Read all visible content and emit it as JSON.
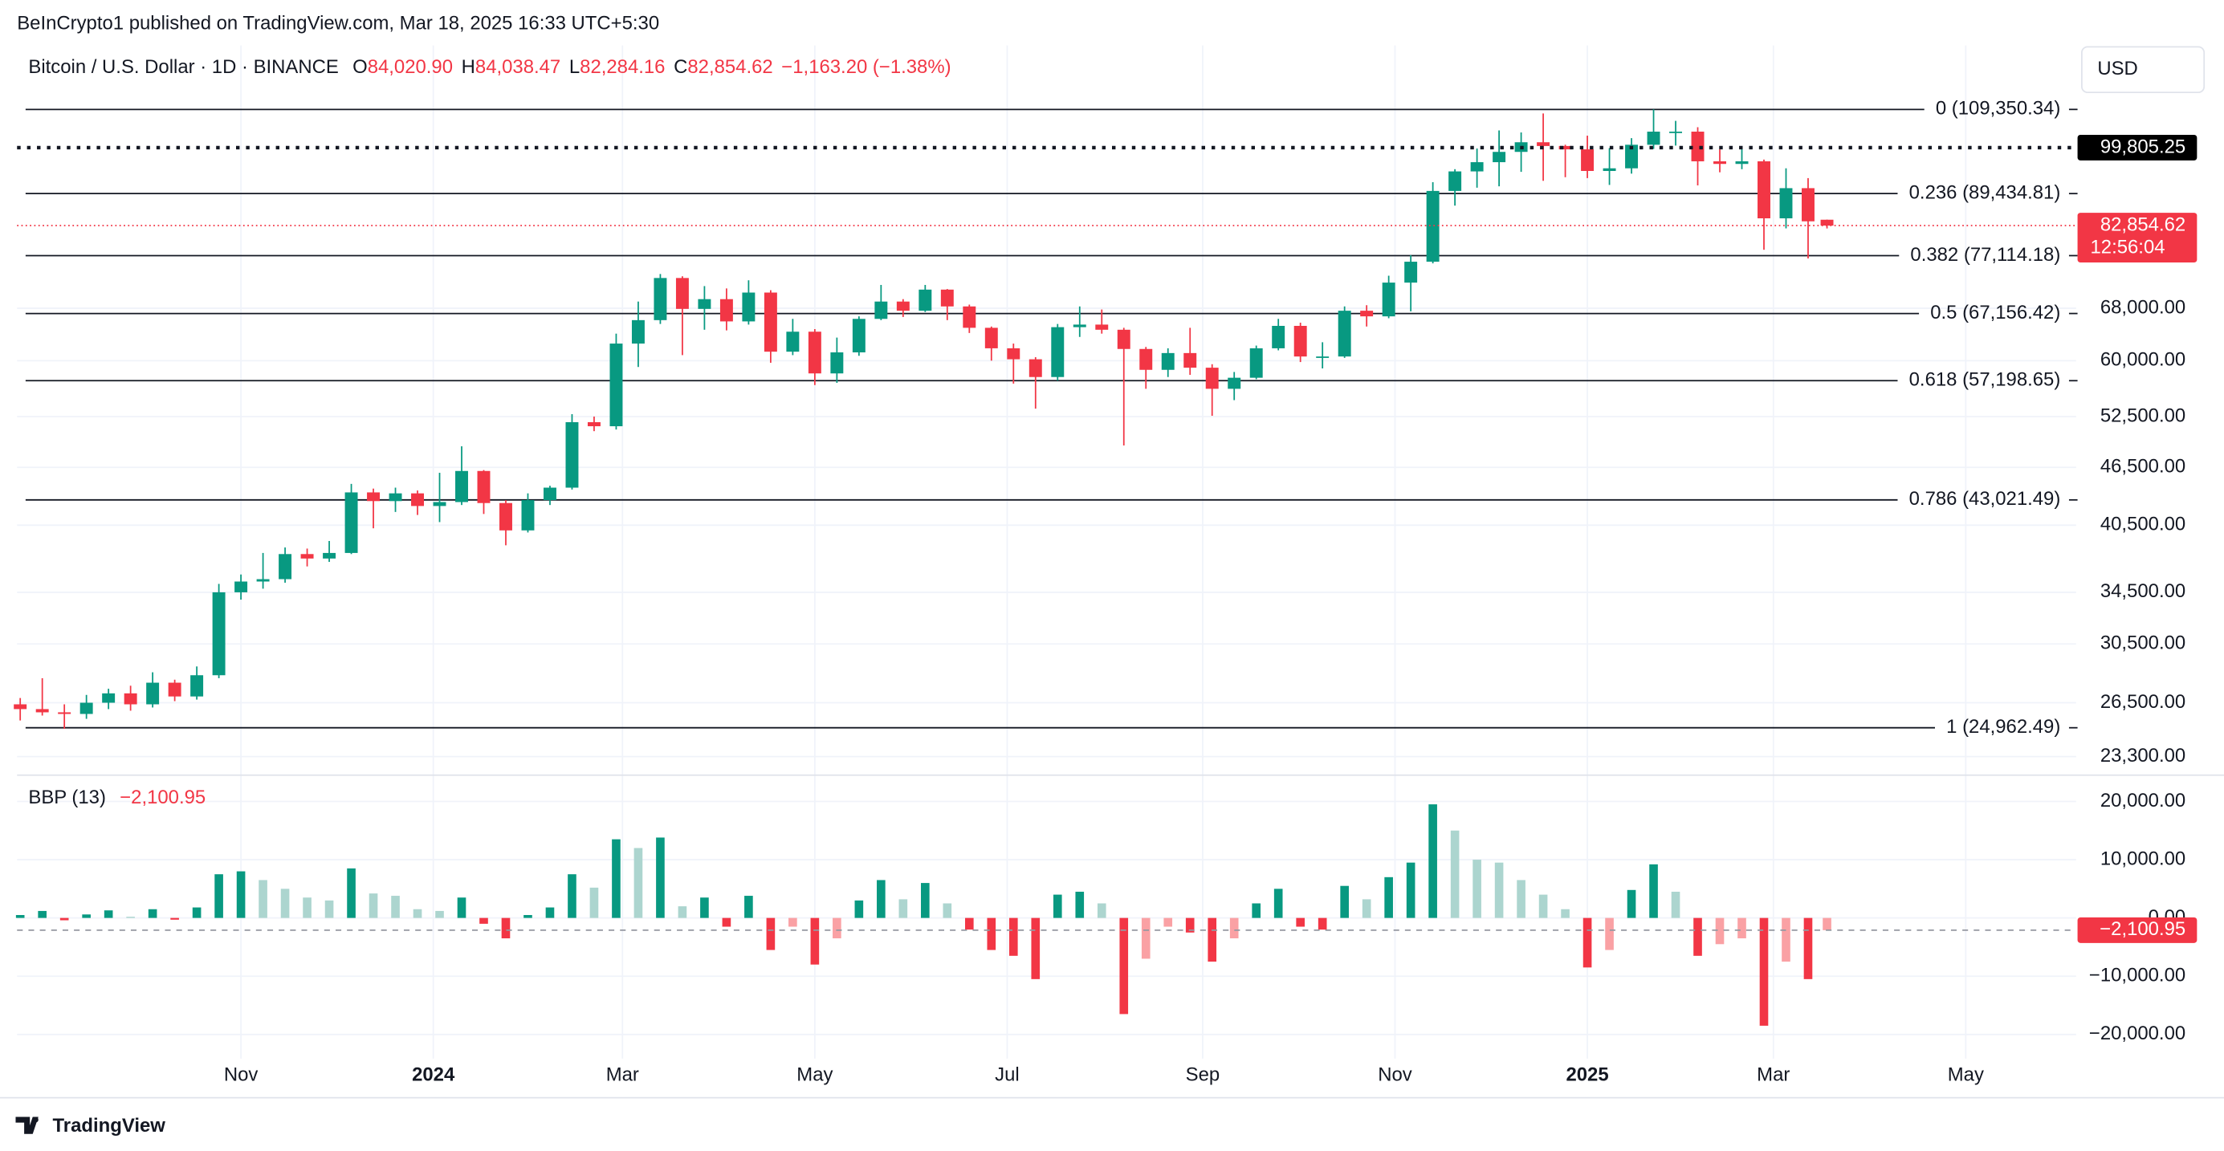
{
  "header": {
    "published": "BeInCrypto1 published on TradingView.com, Mar 18, 2025 16:33 UTC+5:30",
    "currency_button": "USD",
    "brand": "TradingView"
  },
  "legend": {
    "symbol": "Bitcoin / U.S. Dollar · 1D · BINANCE",
    "fields": [
      {
        "key": "O",
        "value": "84,020.90"
      },
      {
        "key": "H",
        "value": "84,038.47"
      },
      {
        "key": "L",
        "value": "82,284.16"
      },
      {
        "key": "C",
        "value": "82,854.62"
      }
    ],
    "change": "−1,163.20 (−1.38%)"
  },
  "chart_data": {
    "type": "candlestick",
    "log_scale": true,
    "grid": true,
    "up_color": "#089981",
    "down_color": "#f23645",
    "x": [
      "2023-08-23",
      "2023-08-30",
      "2023-09-06",
      "2023-09-13",
      "2023-09-20",
      "2023-09-27",
      "2023-10-04",
      "2023-10-11",
      "2023-10-18",
      "2023-10-25",
      "2023-11-01",
      "2023-11-08",
      "2023-11-15",
      "2023-11-22",
      "2023-11-29",
      "2023-12-06",
      "2023-12-13",
      "2023-12-20",
      "2023-12-27",
      "2024-01-03",
      "2024-01-10",
      "2024-01-17",
      "2024-01-24",
      "2024-01-31",
      "2024-02-07",
      "2024-02-14",
      "2024-02-21",
      "2024-02-28",
      "2024-03-06",
      "2024-03-13",
      "2024-03-20",
      "2024-03-27",
      "2024-04-03",
      "2024-04-10",
      "2024-04-17",
      "2024-04-24",
      "2024-05-01",
      "2024-05-08",
      "2024-05-15",
      "2024-05-22",
      "2024-05-29",
      "2024-06-05",
      "2024-06-12",
      "2024-06-19",
      "2024-06-26",
      "2024-07-03",
      "2024-07-10",
      "2024-07-17",
      "2024-07-24",
      "2024-07-31",
      "2024-08-07",
      "2024-08-14",
      "2024-08-21",
      "2024-08-28",
      "2024-09-04",
      "2024-09-11",
      "2024-09-18",
      "2024-09-25",
      "2024-10-02",
      "2024-10-09",
      "2024-10-16",
      "2024-10-23",
      "2024-10-30",
      "2024-11-06",
      "2024-11-13",
      "2024-11-20",
      "2024-11-27",
      "2024-12-04",
      "2024-12-11",
      "2024-12-18",
      "2024-12-25",
      "2025-01-01",
      "2025-01-08",
      "2025-01-15",
      "2025-01-22",
      "2025-01-29",
      "2025-02-05",
      "2025-02-12",
      "2025-02-19",
      "2025-02-26",
      "2025-03-05",
      "2025-03-12",
      "2025-03-18"
    ],
    "open": [
      26400,
      26100,
      25900,
      25800,
      26500,
      27100,
      26400,
      27800,
      26900,
      28300,
      34500,
      35400,
      35600,
      37800,
      37400,
      37900,
      43800,
      42900,
      43700,
      42400,
      42800,
      46100,
      42700,
      40000,
      43000,
      44300,
      51800,
      51300,
      62500,
      66100,
      73100,
      67900,
      69500,
      65900,
      70600,
      61300,
      64300,
      58200,
      61200,
      66300,
      69100,
      67600,
      71100,
      68300,
      64900,
      61800,
      60200,
      57700,
      65000,
      65400,
      64600,
      61700,
      58700,
      61100,
      59000,
      56100,
      57600,
      61800,
      65200,
      60600,
      60600,
      67600,
      66700,
      72300,
      76000,
      90000,
      94300,
      96400,
      98800,
      101100,
      100200,
      99400,
      94400,
      95000,
      100500,
      103700,
      103700,
      96600,
      96000,
      96600,
      84300,
      90600,
      84020.9
    ],
    "high": [
      26800,
      28100,
      26400,
      27000,
      27400,
      27600,
      28500,
      28000,
      28900,
      35200,
      36000,
      37900,
      38400,
      38300,
      39000,
      44700,
      44200,
      44300,
      44000,
      45900,
      48900,
      46200,
      43000,
      43700,
      44500,
      52800,
      52500,
      64000,
      69100,
      73800,
      73400,
      71700,
      71300,
      72700,
      71000,
      66300,
      64700,
      63400,
      66700,
      71900,
      69500,
      71900,
      71200,
      68600,
      65100,
      62500,
      60500,
      65500,
      68300,
      67800,
      64900,
      62000,
      61800,
      64900,
      59500,
      58400,
      62200,
      66300,
      65700,
      62700,
      68300,
      68500,
      73500,
      77200,
      91900,
      94800,
      99600,
      104000,
      103500,
      108300,
      100500,
      102700,
      99700,
      102100,
      109350,
      106400,
      104800,
      99400,
      99500,
      97000,
      95000,
      92800,
      84038.47
    ],
    "low": [
      25400,
      25700,
      24900,
      25500,
      26100,
      26000,
      26200,
      26600,
      26700,
      28100,
      33900,
      34800,
      35300,
      36700,
      37100,
      37800,
      40200,
      41800,
      41500,
      40800,
      42500,
      41600,
      38600,
      39800,
      42500,
      44100,
      50700,
      50900,
      59100,
      65500,
      60800,
      64600,
      64500,
      65400,
      59700,
      60800,
      56600,
      56900,
      60700,
      66100,
      66600,
      67400,
      66100,
      64100,
      60000,
      56800,
      53500,
      57200,
      63500,
      64000,
      49000,
      56100,
      57700,
      58000,
      52600,
      54600,
      57400,
      61500,
      59800,
      58900,
      60400,
      65100,
      66400,
      67500,
      75700,
      86900,
      90700,
      91000,
      94200,
      92200,
      93000,
      92800,
      91300,
      93800,
      99500,
      100300,
      91200,
      94100,
      94800,
      78200,
      82300,
      76600,
      82284.16
    ],
    "close": [
      26100,
      25900,
      25800,
      26500,
      27100,
      26400,
      27800,
      26900,
      28300,
      34500,
      35400,
      35600,
      37800,
      37400,
      37900,
      43800,
      42900,
      43700,
      42400,
      42800,
      46100,
      42700,
      40000,
      43000,
      44300,
      51800,
      51300,
      62500,
      66100,
      73100,
      67900,
      69500,
      65900,
      70600,
      61300,
      64300,
      58200,
      61200,
      66300,
      69100,
      67600,
      71100,
      68300,
      64900,
      61800,
      60200,
      57700,
      65000,
      65400,
      64600,
      61700,
      58700,
      61100,
      59000,
      56100,
      57600,
      61800,
      65200,
      60600,
      60600,
      67600,
      66700,
      72300,
      76000,
      90000,
      94300,
      96400,
      98800,
      101100,
      100200,
      99400,
      94400,
      95000,
      100500,
      103700,
      103700,
      96600,
      96000,
      96600,
      84300,
      90600,
      83700,
      82854.62
    ],
    "last_label": "82,854.62",
    "countdown": "12:56:04",
    "xlim": [
      "2023-08-22",
      "2025-06-05"
    ],
    "xticks": [
      {
        "value": "2023-11-01",
        "label": "Nov"
      },
      {
        "value": "2024-01-01",
        "label": "2024"
      },
      {
        "value": "2024-03-01",
        "label": "Mar"
      },
      {
        "value": "2024-05-01",
        "label": "May"
      },
      {
        "value": "2024-07-01",
        "label": "Jul"
      },
      {
        "value": "2024-09-01",
        "label": "Sep"
      },
      {
        "value": "2024-11-01",
        "label": "Nov"
      },
      {
        "value": "2025-01-01",
        "label": "2025"
      },
      {
        "value": "2025-03-01",
        "label": "Mar"
      },
      {
        "value": "2025-05-01",
        "label": "May"
      }
    ],
    "ylim": [
      22480,
      127400
    ],
    "yticks": [
      {
        "value": 23300,
        "label": "23,300.00"
      },
      {
        "value": 26500,
        "label": "26,500.00"
      },
      {
        "value": 30500,
        "label": "30,500.00"
      },
      {
        "value": 34500,
        "label": "34,500.00"
      },
      {
        "value": 40500,
        "label": "40,500.00"
      },
      {
        "value": 46500,
        "label": "46,500.00"
      },
      {
        "value": 52500,
        "label": "52,500.00"
      },
      {
        "value": 60000,
        "label": "60,000.00"
      },
      {
        "value": 68000,
        "label": "68,000.00"
      }
    ],
    "fib_levels": [
      {
        "value": 109350.34,
        "label": "0 (109,350.34)"
      },
      {
        "value": 89434.81,
        "label": "0.236 (89,434.81)"
      },
      {
        "value": 77114.18,
        "label": "0.382 (77,114.18)"
      },
      {
        "value": 67156.42,
        "label": "0.5 (67,156.42)"
      },
      {
        "value": 57198.65,
        "label": "0.618 (57,198.65)"
      },
      {
        "value": 43021.49,
        "label": "0.786 (43,021.49)"
      },
      {
        "value": 24962.49,
        "label": "1 (24,962.49)"
      }
    ],
    "price_line": {
      "value": 99805.25,
      "label": "99,805.25"
    },
    "indicator": {
      "type": "bar",
      "name": "BBP (13)",
      "last_label": "−2,100.95",
      "positive_color": "#089981",
      "positive_fading_color": "#acd5cf",
      "negative_color": "#f23645",
      "negative_fading_color": "#faa1a4",
      "values": [
        500,
        1200,
        -400,
        600,
        1300,
        200,
        1500,
        -300,
        1800,
        7500,
        8000,
        6500,
        5000,
        3500,
        3000,
        8500,
        4200,
        3800,
        1500,
        1200,
        3500,
        -1000,
        -3500,
        500,
        1800,
        7500,
        5200,
        13500,
        12000,
        13800,
        2000,
        3500,
        -1500,
        3800,
        -5500,
        -1500,
        -8000,
        -3500,
        3000,
        6500,
        3200,
        6000,
        2500,
        -2000,
        -5500,
        -6500,
        -10500,
        4000,
        4500,
        2500,
        -16500,
        -7000,
        -1500,
        -2500,
        -7500,
        -3500,
        2500,
        5000,
        -1500,
        -2000,
        5500,
        3200,
        7000,
        9500,
        19500,
        15000,
        10000,
        9500,
        6500,
        4000,
        1500,
        -8500,
        -5500,
        4800,
        9200,
        4500,
        -6500,
        -4500,
        -3500,
        -18500,
        -7500,
        -10500,
        -2100.95
      ],
      "ylim": [
        -24150,
        23900
      ],
      "yticks": [
        {
          "value": 20000,
          "label": "20,000.00"
        },
        {
          "value": 10000,
          "label": "10,000.00"
        },
        {
          "value": 0,
          "label": "0.00"
        },
        {
          "value": -10000,
          "label": "−10,000.00"
        },
        {
          "value": -20000,
          "label": "−20,000.00"
        }
      ]
    }
  }
}
